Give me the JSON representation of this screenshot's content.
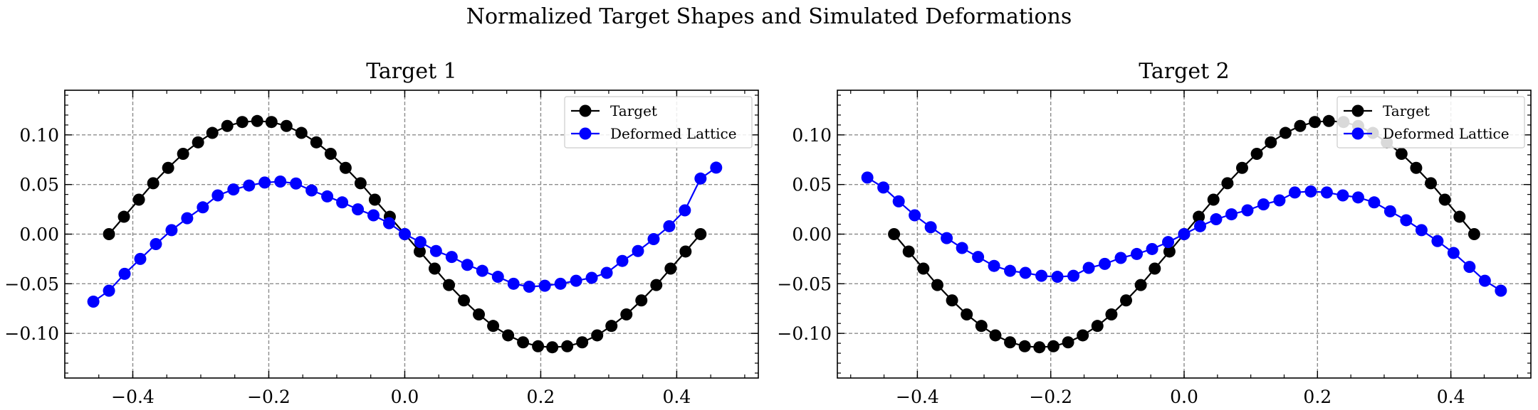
{
  "figure": {
    "title": "Normalized Target Shapes and Simulated Deformations"
  },
  "chart_data": [
    {
      "type": "line",
      "title": "Target 1",
      "xlabel": "",
      "ylabel": "",
      "xlim": [
        -0.5,
        0.52
      ],
      "ylim": [
        -0.145,
        0.145
      ],
      "x_ticks": [
        -0.4,
        -0.2,
        0.0,
        0.2,
        0.4
      ],
      "x_tick_labels": [
        "−0.4",
        "−0.2",
        "0.0",
        "0.2",
        "0.4"
      ],
      "y_ticks": [
        0.1,
        0.05,
        0.0,
        -0.05,
        -0.1
      ],
      "y_tick_labels": [
        "0.10",
        "0.05",
        "0.00",
        "−0.05",
        "−0.10"
      ],
      "grid": true,
      "legend_position": "top-right",
      "series": [
        {
          "name": "Target",
          "color": "#000000",
          "marker": "circle",
          "points": [
            [
              -0.435,
              0.0
            ],
            [
              -0.413,
              0.0175
            ],
            [
              -0.391,
              0.0347
            ],
            [
              -0.37,
              0.0513
            ],
            [
              -0.348,
              0.0668
            ],
            [
              -0.326,
              0.0809
            ],
            [
              -0.304,
              0.0925
            ],
            [
              -0.283,
              0.102
            ],
            [
              -0.261,
              0.109
            ],
            [
              -0.239,
              0.113
            ],
            [
              -0.217,
              0.114
            ],
            [
              -0.196,
              0.113
            ],
            [
              -0.174,
              0.109
            ],
            [
              -0.152,
              0.102
            ],
            [
              -0.13,
              0.0925
            ],
            [
              -0.109,
              0.0809
            ],
            [
              -0.087,
              0.0668
            ],
            [
              -0.065,
              0.0513
            ],
            [
              -0.044,
              0.0347
            ],
            [
              -0.022,
              0.0175
            ],
            [
              0.0,
              0.0
            ],
            [
              0.022,
              -0.0175
            ],
            [
              0.044,
              -0.0347
            ],
            [
              0.065,
              -0.0513
            ],
            [
              0.087,
              -0.0668
            ],
            [
              0.109,
              -0.0809
            ],
            [
              0.13,
              -0.0925
            ],
            [
              0.152,
              -0.102
            ],
            [
              0.174,
              -0.109
            ],
            [
              0.196,
              -0.113
            ],
            [
              0.217,
              -0.114
            ],
            [
              0.239,
              -0.113
            ],
            [
              0.261,
              -0.109
            ],
            [
              0.283,
              -0.102
            ],
            [
              0.304,
              -0.0925
            ],
            [
              0.326,
              -0.0809
            ],
            [
              0.348,
              -0.0668
            ],
            [
              0.37,
              -0.0513
            ],
            [
              0.391,
              -0.0347
            ],
            [
              0.413,
              -0.0175
            ],
            [
              0.435,
              0.0
            ]
          ]
        },
        {
          "name": "Deformed Lattice",
          "color": "#0000ff",
          "marker": "circle",
          "points": [
            [
              -0.458,
              -0.068
            ],
            [
              -0.435,
              -0.057
            ],
            [
              -0.412,
              -0.04
            ],
            [
              -0.389,
              -0.025
            ],
            [
              -0.366,
              -0.01
            ],
            [
              -0.343,
              0.004
            ],
            [
              -0.32,
              0.016
            ],
            [
              -0.297,
              0.027
            ],
            [
              -0.275,
              0.039
            ],
            [
              -0.252,
              0.045
            ],
            [
              -0.229,
              0.049
            ],
            [
              -0.206,
              0.052
            ],
            [
              -0.183,
              0.053
            ],
            [
              -0.16,
              0.051
            ],
            [
              -0.137,
              0.044
            ],
            [
              -0.114,
              0.038
            ],
            [
              -0.092,
              0.032
            ],
            [
              -0.069,
              0.025
            ],
            [
              -0.046,
              0.019
            ],
            [
              -0.023,
              0.011
            ],
            [
              0.0,
              0.0
            ],
            [
              0.023,
              -0.008
            ],
            [
              0.046,
              -0.017
            ],
            [
              0.069,
              -0.023
            ],
            [
              0.092,
              -0.031
            ],
            [
              0.114,
              -0.037
            ],
            [
              0.137,
              -0.043
            ],
            [
              0.16,
              -0.05
            ],
            [
              0.183,
              -0.053
            ],
            [
              0.206,
              -0.052
            ],
            [
              0.229,
              -0.05
            ],
            [
              0.252,
              -0.047
            ],
            [
              0.275,
              -0.044
            ],
            [
              0.297,
              -0.039
            ],
            [
              0.32,
              -0.027
            ],
            [
              0.343,
              -0.017
            ],
            [
              0.366,
              -0.005
            ],
            [
              0.389,
              0.008
            ],
            [
              0.412,
              0.024
            ],
            [
              0.435,
              0.056
            ],
            [
              0.458,
              0.067
            ]
          ]
        }
      ]
    },
    {
      "type": "line",
      "title": "Target 2",
      "xlabel": "",
      "ylabel": "",
      "xlim": [
        -0.52,
        0.52
      ],
      "ylim": [
        -0.145,
        0.145
      ],
      "x_ticks": [
        -0.4,
        -0.2,
        0.0,
        0.2,
        0.4
      ],
      "x_tick_labels": [
        "−0.4",
        "−0.2",
        "0.0",
        "0.2",
        "0.4"
      ],
      "y_ticks": [
        0.1,
        0.05,
        0.0,
        -0.05,
        -0.1
      ],
      "y_tick_labels": [
        "0.10",
        "0.05",
        "0.00",
        "−0.05",
        "−0.10"
      ],
      "grid": true,
      "legend_position": "top-right",
      "series": [
        {
          "name": "Target",
          "color": "#000000",
          "marker": "circle",
          "points": [
            [
              -0.435,
              0.0
            ],
            [
              -0.413,
              -0.0175
            ],
            [
              -0.391,
              -0.0347
            ],
            [
              -0.37,
              -0.0513
            ],
            [
              -0.348,
              -0.0668
            ],
            [
              -0.326,
              -0.0809
            ],
            [
              -0.304,
              -0.0925
            ],
            [
              -0.283,
              -0.102
            ],
            [
              -0.261,
              -0.109
            ],
            [
              -0.239,
              -0.113
            ],
            [
              -0.217,
              -0.114
            ],
            [
              -0.196,
              -0.113
            ],
            [
              -0.174,
              -0.109
            ],
            [
              -0.152,
              -0.102
            ],
            [
              -0.13,
              -0.0925
            ],
            [
              -0.109,
              -0.0809
            ],
            [
              -0.087,
              -0.0668
            ],
            [
              -0.065,
              -0.0513
            ],
            [
              -0.044,
              -0.0347
            ],
            [
              -0.022,
              -0.0175
            ],
            [
              0.0,
              0.0
            ],
            [
              0.022,
              0.0175
            ],
            [
              0.044,
              0.0347
            ],
            [
              0.065,
              0.0513
            ],
            [
              0.087,
              0.0668
            ],
            [
              0.109,
              0.0809
            ],
            [
              0.13,
              0.0925
            ],
            [
              0.152,
              0.102
            ],
            [
              0.174,
              0.109
            ],
            [
              0.196,
              0.113
            ],
            [
              0.217,
              0.114
            ],
            [
              0.239,
              0.113
            ],
            [
              0.261,
              0.109
            ],
            [
              0.283,
              0.102
            ],
            [
              0.304,
              0.0925
            ],
            [
              0.326,
              0.0809
            ],
            [
              0.348,
              0.0668
            ],
            [
              0.37,
              0.0513
            ],
            [
              0.391,
              0.0347
            ],
            [
              0.413,
              0.0175
            ],
            [
              0.435,
              0.0
            ]
          ]
        },
        {
          "name": "Deformed Lattice",
          "color": "#0000ff",
          "marker": "circle",
          "points": [
            [
              -0.475,
              0.057
            ],
            [
              -0.451,
              0.047
            ],
            [
              -0.428,
              0.033
            ],
            [
              -0.404,
              0.019
            ],
            [
              -0.38,
              0.007
            ],
            [
              -0.356,
              -0.004
            ],
            [
              -0.333,
              -0.014
            ],
            [
              -0.309,
              -0.023
            ],
            [
              -0.285,
              -0.032
            ],
            [
              -0.261,
              -0.037
            ],
            [
              -0.238,
              -0.039
            ],
            [
              -0.214,
              -0.042
            ],
            [
              -0.19,
              -0.043
            ],
            [
              -0.166,
              -0.042
            ],
            [
              -0.143,
              -0.034
            ],
            [
              -0.119,
              -0.03
            ],
            [
              -0.095,
              -0.024
            ],
            [
              -0.071,
              -0.02
            ],
            [
              -0.048,
              -0.015
            ],
            [
              -0.024,
              -0.008
            ],
            [
              0.0,
              0.0
            ],
            [
              0.024,
              0.008
            ],
            [
              0.048,
              0.015
            ],
            [
              0.071,
              0.02
            ],
            [
              0.095,
              0.024
            ],
            [
              0.119,
              0.03
            ],
            [
              0.143,
              0.034
            ],
            [
              0.166,
              0.042
            ],
            [
              0.19,
              0.043
            ],
            [
              0.214,
              0.042
            ],
            [
              0.238,
              0.039
            ],
            [
              0.261,
              0.037
            ],
            [
              0.285,
              0.032
            ],
            [
              0.309,
              0.023
            ],
            [
              0.333,
              0.014
            ],
            [
              0.356,
              0.004
            ],
            [
              0.38,
              -0.007
            ],
            [
              0.404,
              -0.019
            ],
            [
              0.428,
              -0.033
            ],
            [
              0.451,
              -0.047
            ],
            [
              0.475,
              -0.057
            ]
          ]
        }
      ]
    }
  ]
}
